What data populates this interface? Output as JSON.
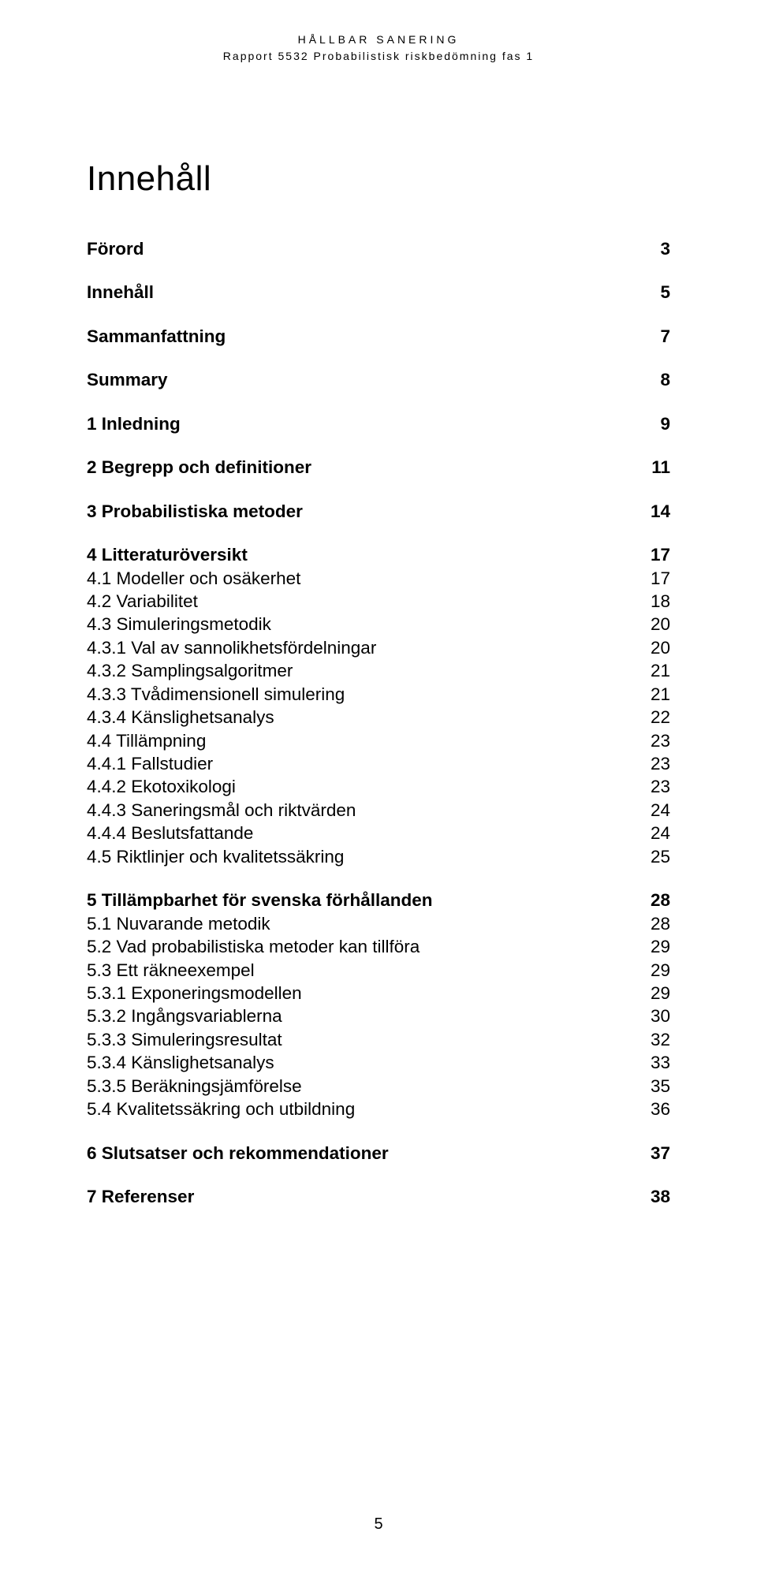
{
  "header": {
    "line1": "HÅLLBAR SANERING",
    "line2": "Rapport 5532 Probabilistisk riskbedömning fas 1"
  },
  "title": "Innehåll",
  "footer_page": "5",
  "toc": [
    {
      "label": "Förord",
      "page": "3",
      "bold": true,
      "gap_after": true
    },
    {
      "label": "Innehåll",
      "page": "5",
      "bold": true,
      "gap_after": true
    },
    {
      "label": "Sammanfattning",
      "page": "7",
      "bold": true,
      "gap_after": true
    },
    {
      "label": "Summary",
      "page": "8",
      "bold": true,
      "gap_after": true
    },
    {
      "label": "1   Inledning",
      "page": "9",
      "bold": true,
      "gap_after": true
    },
    {
      "label": "2   Begrepp och definitioner",
      "page": "11",
      "bold": true,
      "gap_after": true
    },
    {
      "label": "3   Probabilistiska metoder",
      "page": "14",
      "bold": true,
      "gap_after": true
    },
    {
      "label": "4   Litteraturöversikt",
      "page": "17",
      "bold": true
    },
    {
      "label": "4.1   Modeller och osäkerhet",
      "page": "17"
    },
    {
      "label": "4.2   Variabilitet",
      "page": "18"
    },
    {
      "label": "4.3   Simuleringsmetodik",
      "page": "20"
    },
    {
      "label": "4.3.1  Val av sannolikhetsfördelningar",
      "page": "20"
    },
    {
      "label": "4.3.2  Samplingsalgoritmer",
      "page": "21"
    },
    {
      "label": "4.3.3  Tvådimensionell simulering",
      "page": "21"
    },
    {
      "label": "4.3.4  Känslighetsanalys",
      "page": "22"
    },
    {
      "label": "4.4   Tillämpning",
      "page": "23"
    },
    {
      "label": "4.4.1  Fallstudier",
      "page": "23"
    },
    {
      "label": "4.4.2  Ekotoxikologi",
      "page": "23"
    },
    {
      "label": "4.4.3  Saneringsmål och riktvärden",
      "page": "24"
    },
    {
      "label": "4.4.4  Beslutsfattande",
      "page": "24"
    },
    {
      "label": "4.5   Riktlinjer och kvalitetssäkring",
      "page": "25",
      "gap_after": true
    },
    {
      "label": "5   Tillämpbarhet för svenska förhållanden",
      "page": "28",
      "bold": true
    },
    {
      "label": "5.1   Nuvarande metodik",
      "page": "28"
    },
    {
      "label": "5.2   Vad probabilistiska metoder kan tillföra",
      "page": "29"
    },
    {
      "label": "5.3   Ett räkneexempel",
      "page": "29"
    },
    {
      "label": "5.3.1  Exponeringsmodellen",
      "page": "29"
    },
    {
      "label": "5.3.2  Ingångsvariablerna",
      "page": "30"
    },
    {
      "label": "5.3.3  Simuleringsresultat",
      "page": "32"
    },
    {
      "label": "5.3.4  Känslighetsanalys",
      "page": "33"
    },
    {
      "label": "5.3.5  Beräkningsjämförelse",
      "page": "35"
    },
    {
      "label": "5.4   Kvalitetssäkring och utbildning",
      "page": "36",
      "gap_after": true
    },
    {
      "label": "6   Slutsatser och rekommendationer",
      "page": "37",
      "bold": true,
      "gap_after": true
    },
    {
      "label": "7   Referenser",
      "page": "38",
      "bold": true
    }
  ]
}
